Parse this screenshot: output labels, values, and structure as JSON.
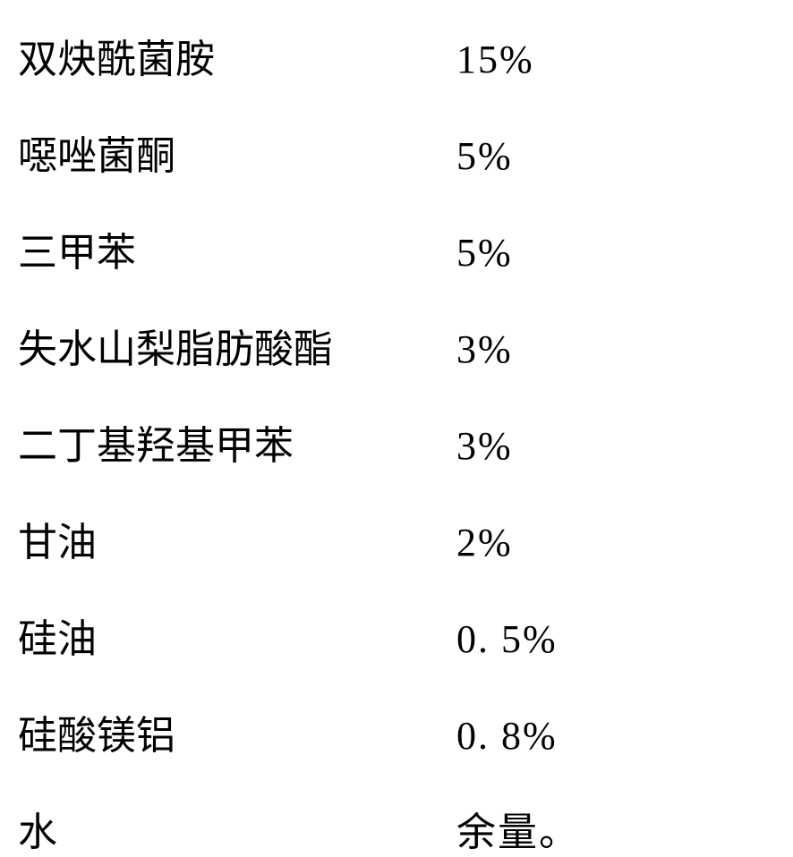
{
  "table": {
    "type": "table",
    "background_color": "#ffffff",
    "text_color": "#000000",
    "font_family": "SimSun",
    "label_fontsize": 44,
    "value_fontsize": 44,
    "label_column_width": 490,
    "row_gap": 44,
    "rows": [
      {
        "label": "双炔酰菌胺",
        "value": "15%"
      },
      {
        "label": "噁唑菌酮",
        "value": "5%"
      },
      {
        "label": "三甲苯",
        "value": "5%"
      },
      {
        "label": "失水山梨脂肪酸酯",
        "value": "3%"
      },
      {
        "label": "二丁基羟基甲苯",
        "value": "3%"
      },
      {
        "label": "甘油",
        "value": "2%"
      },
      {
        "label": "硅油",
        "value": "0. 5%"
      },
      {
        "label": "硅酸镁铝",
        "value": "0. 8%"
      },
      {
        "label": "水",
        "value": "余量。"
      }
    ]
  }
}
